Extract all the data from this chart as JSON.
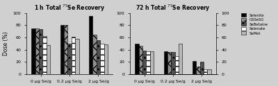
{
  "title_left": "1 h Total $^{75}$Se Recovery",
  "title_right": "72 h Total $^{75}$Se Recovery",
  "ylabel": "Dose (%)",
  "xlabels": [
    "0 μg Se/g",
    "0.2 μg Se/g",
    "2 μg Se/g"
  ],
  "ylim": [
    0,
    100
  ],
  "yticks": [
    0,
    20,
    40,
    60,
    80,
    100
  ],
  "legend_labels": [
    "Selenite",
    "GSSeSG",
    "SeBetaine",
    "Selenate",
    "SeMet"
  ],
  "left_data": [
    [
      75,
      75,
      74,
      62,
      48
    ],
    [
      80,
      80,
      50,
      61,
      58
    ],
    [
      95,
      65,
      55,
      50,
      49
    ]
  ],
  "right_data": [
    [
      50,
      46,
      39,
      37,
      37
    ],
    [
      38,
      36,
      36,
      29,
      50
    ],
    [
      22,
      13,
      20,
      8,
      8
    ]
  ],
  "bar_width": 0.13,
  "background": "#d0d0d0"
}
